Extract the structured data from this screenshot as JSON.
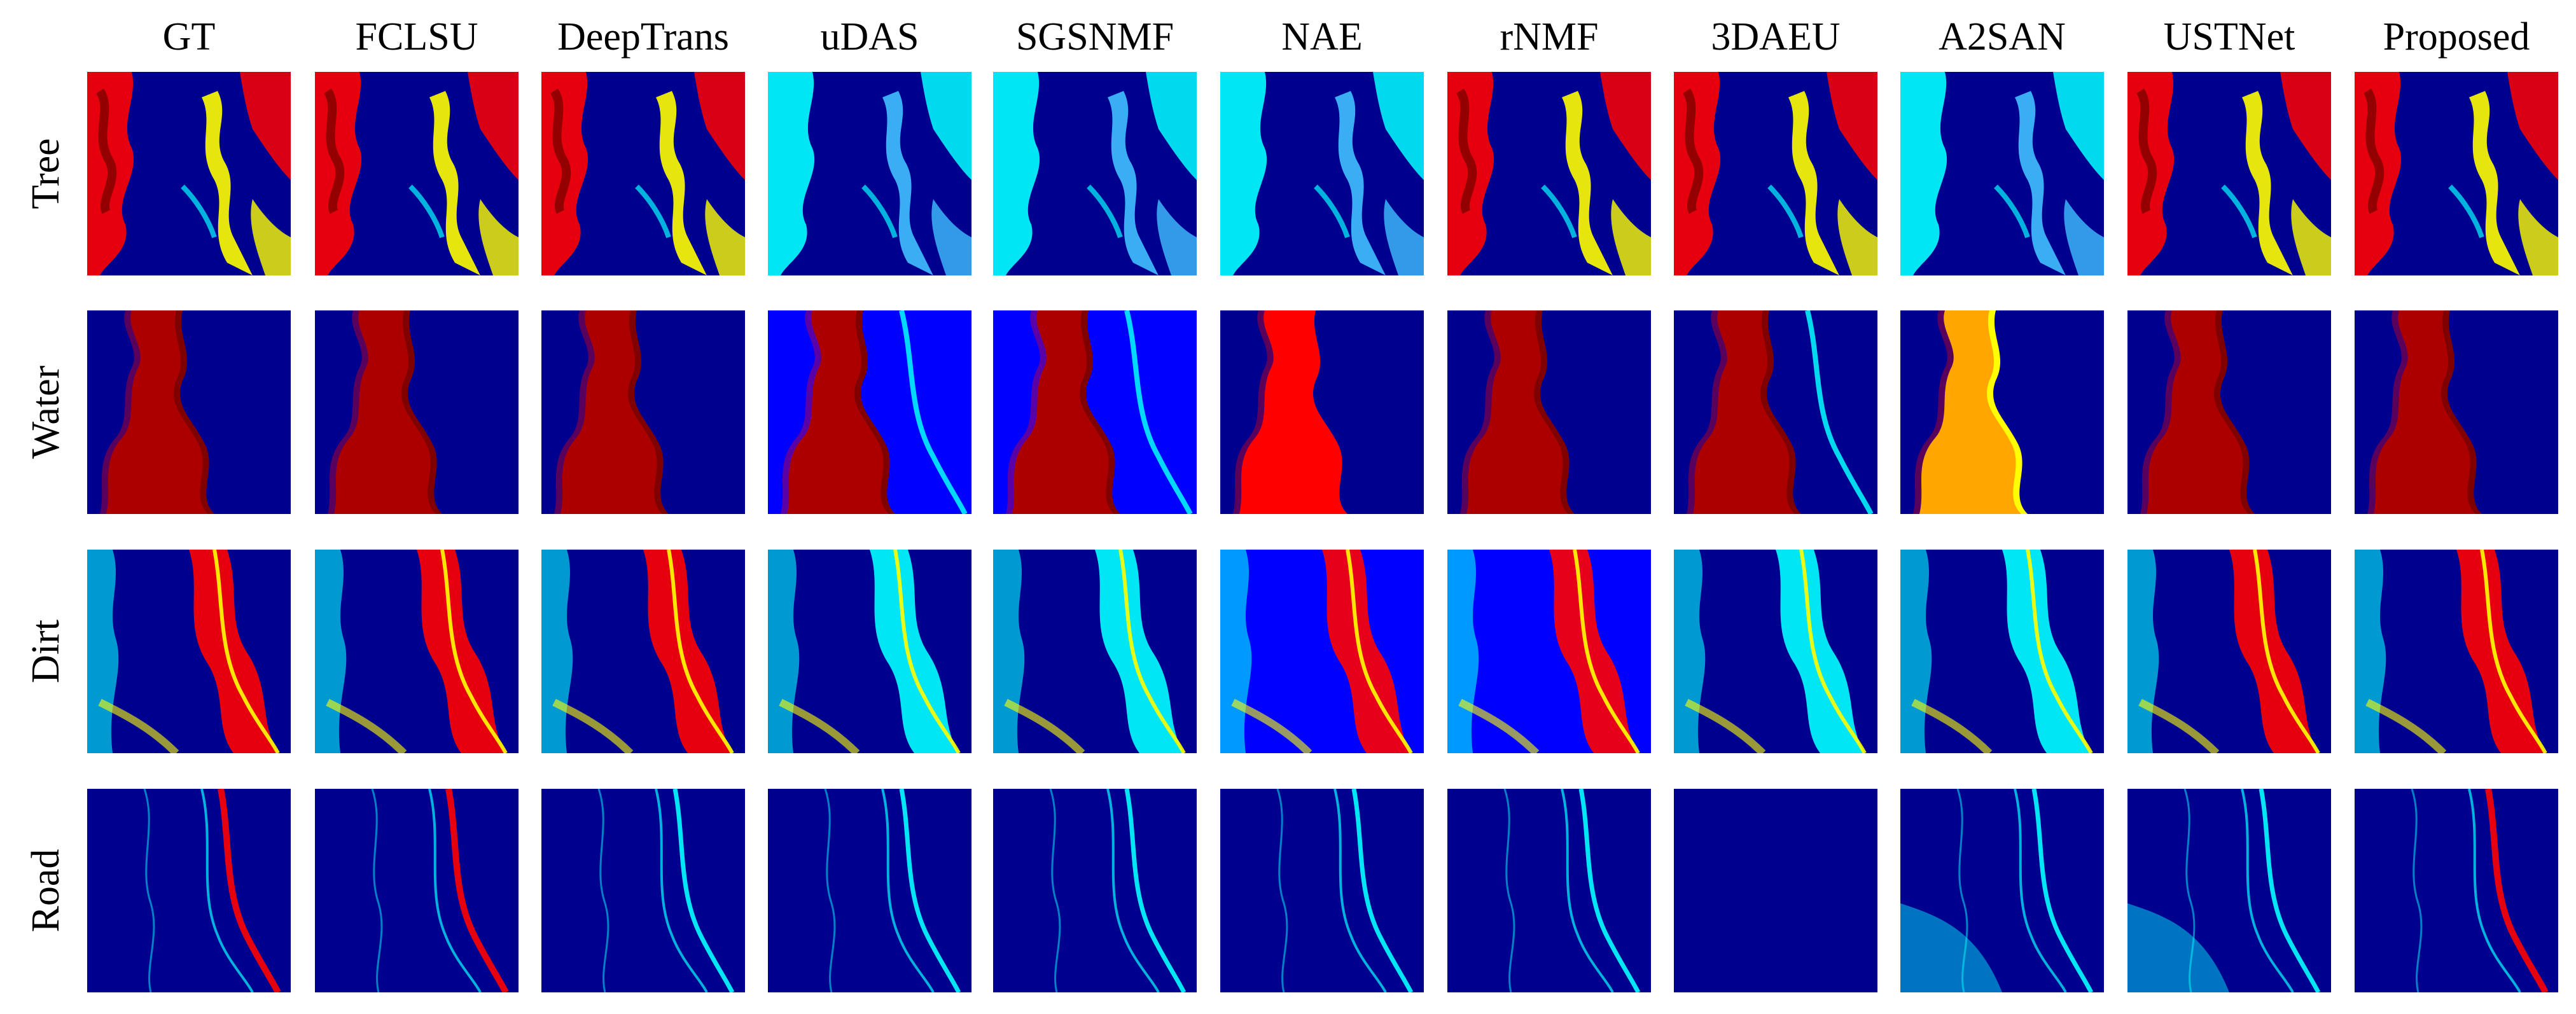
{
  "columns": [
    "GT",
    "FCLSU",
    "DeepTrans",
    "uDAS",
    "SGSNMF",
    "NAE",
    "rNMF",
    "3DAEU",
    "A2SAN",
    "USTNet",
    "Proposed"
  ],
  "rows": [
    "Tree",
    "Water",
    "Dirt",
    "Road"
  ],
  "colormap": "jet",
  "colors": {
    "background": "#ffffff",
    "jet_dark_blue": "#00008f",
    "jet_blue": "#0000ff",
    "jet_cyan": "#00ffff",
    "jet_yellow": "#ffff00",
    "jet_red": "#ff0000",
    "jet_dark_red": "#800000"
  }
}
